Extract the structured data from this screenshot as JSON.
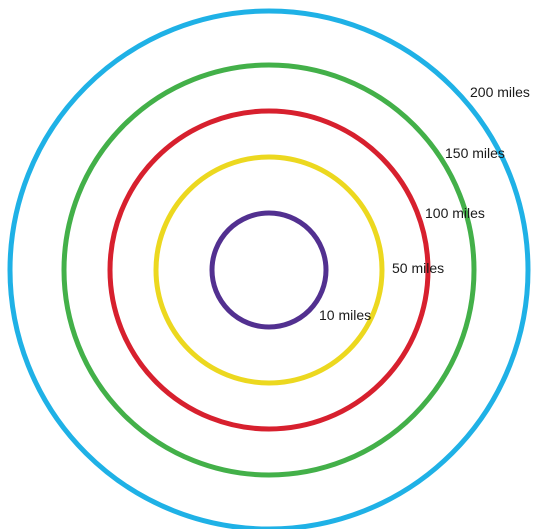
{
  "rings": [
    {
      "label": "200 miles",
      "radius_miles": 200,
      "color": "#1fb1e6"
    },
    {
      "label": "150 miles",
      "radius_miles": 150,
      "color": "#43b049"
    },
    {
      "label": "100 miles",
      "radius_miles": 100,
      "color": "#d7202e"
    },
    {
      "label": "50 miles",
      "radius_miles": 50,
      "color": "#ecd81f"
    },
    {
      "label": "10 miles",
      "radius_miles": 10,
      "color": "#523090"
    }
  ]
}
